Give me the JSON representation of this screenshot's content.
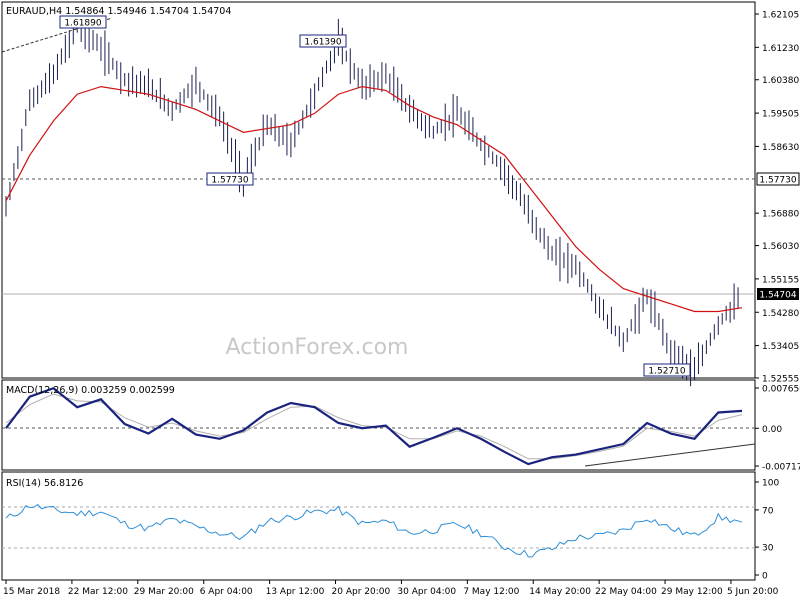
{
  "header": {
    "symbol": "EURAUD,H4",
    "ohlc": "1.54864 1.54946 1.54704 1.54704"
  },
  "watermark": "ActionForex.com",
  "colors": {
    "price_bars": "#1a1f4e",
    "sma": "#d01010",
    "macd_line": "#1a237e",
    "macd_signal": "#b0b0b0",
    "rsi": "#2f8fd8",
    "current_price_tag_bg": "#000000",
    "current_price_tag_text": "#ffffff",
    "support_line": "#555555",
    "trendline": "#333333"
  },
  "chart_data": [
    {
      "type": "line",
      "panel": "price",
      "title": "EURAUD,H4 1.54864 1.54946 1.54704 1.54704",
      "ylim": [
        1.52555,
        1.62105
      ],
      "y_ticks": [
        "1.62105",
        "1.61230",
        "1.60380",
        "1.59505",
        "1.58630",
        "1.57730",
        "1.56880",
        "1.56030",
        "1.55155",
        "1.54704",
        "1.54280",
        "1.53405",
        "1.52555"
      ],
      "x_ticks": [
        "15 Mar 2018",
        "22 Mar 12:00",
        "29 Mar 20:00",
        "6 Apr 04:00",
        "13 Apr 12:00",
        "20 Apr 20:00",
        "30 Apr 04:00",
        "7 May 12:00",
        "14 May 20:00",
        "22 May 04:00",
        "29 May 12:00",
        "5 Jun 20:00"
      ],
      "current_price": "1.54704",
      "support_level": "1.57730",
      "annotations": [
        "1.61890",
        "1.61390",
        "1.57730",
        "1.52710"
      ],
      "series": [
        {
          "name": "close",
          "x": [
            "15 Mar 2018",
            "18 Mar",
            "20 Mar",
            "22 Mar 12:00",
            "24 Mar",
            "26 Mar",
            "29 Mar 20:00",
            "2 Apr",
            "6 Apr 04:00",
            "10 Apr",
            "13 Apr 12:00",
            "16 Apr",
            "18 Apr",
            "20 Apr 20:00",
            "24 Apr",
            "27 Apr",
            "30 Apr 04:00",
            "3 May",
            "7 May 12:00",
            "10 May",
            "14 May 20:00",
            "16 May",
            "18 May",
            "22 May 04:00",
            "24 May",
            "26 May",
            "29 May 12:00",
            "31 May",
            "2 Jun",
            "4 Jun",
            "5 Jun 20:00",
            "7 Jun"
          ],
          "values": [
            1.57,
            1.598,
            1.605,
            1.618,
            1.612,
            1.604,
            1.602,
            1.596,
            1.603,
            1.594,
            1.5773,
            1.592,
            1.587,
            1.6,
            1.6139,
            1.602,
            1.605,
            1.596,
            1.59,
            1.595,
            1.587,
            1.58,
            1.569,
            1.558,
            1.555,
            1.544,
            1.535,
            1.547,
            1.533,
            1.5271,
            1.54,
            1.547
          ]
        },
        {
          "name": "SMA",
          "values": [
            1.572,
            1.584,
            1.593,
            1.6,
            1.602,
            1.601,
            1.6,
            1.598,
            1.596,
            1.593,
            1.59,
            1.591,
            1.592,
            1.595,
            1.6,
            1.602,
            1.601,
            1.597,
            1.594,
            1.592,
            1.588,
            1.584,
            1.576,
            1.568,
            1.56,
            1.554,
            1.549,
            1.547,
            1.545,
            1.543,
            1.543,
            1.544
          ]
        }
      ]
    },
    {
      "type": "line",
      "panel": "macd",
      "title": "MACD(12,26,9) 0.003259 0.002599",
      "ylim": [
        -0.007171,
        0.00765
      ],
      "y_ticks": [
        "0.007650",
        "0.00",
        "-0.007171"
      ],
      "series": [
        {
          "name": "MACD",
          "values": [
            0.0,
            0.006,
            0.0076,
            0.004,
            0.0055,
            0.0008,
            -0.001,
            0.0018,
            -0.0012,
            -0.002,
            -0.0004,
            0.003,
            0.0048,
            0.004,
            0.001,
            0.0,
            0.0005,
            -0.0035,
            -0.0018,
            0.0,
            -0.002,
            -0.0045,
            -0.0068,
            -0.0055,
            -0.005,
            -0.004,
            -0.003,
            0.001,
            -0.001,
            -0.002,
            0.003,
            0.0033
          ]
        },
        {
          "name": "Signal",
          "values": [
            0.001,
            0.0045,
            0.0065,
            0.0052,
            0.005,
            0.002,
            0.0002,
            0.001,
            -0.0005,
            -0.0015,
            -0.0008,
            0.0018,
            0.004,
            0.0042,
            0.002,
            0.0005,
            0.0002,
            -0.002,
            -0.002,
            -0.0005,
            -0.0015,
            -0.0035,
            -0.0058,
            -0.0058,
            -0.0052,
            -0.0044,
            -0.0034,
            0.0,
            -0.0006,
            -0.0015,
            0.0015,
            0.0026
          ]
        }
      ]
    },
    {
      "type": "line",
      "panel": "rsi",
      "title": "RSI(14) 56.8126",
      "ylim": [
        0,
        100
      ],
      "y_ticks": [
        "100",
        "70",
        "30",
        "0"
      ],
      "series": [
        {
          "name": "RSI(14)",
          "values": [
            60,
            75,
            70,
            66,
            68,
            55,
            50,
            60,
            52,
            45,
            40,
            58,
            62,
            68,
            70,
            55,
            58,
            45,
            48,
            55,
            45,
            30,
            22,
            28,
            40,
            42,
            48,
            62,
            50,
            42,
            62,
            56.8126
          ]
        }
      ]
    }
  ]
}
